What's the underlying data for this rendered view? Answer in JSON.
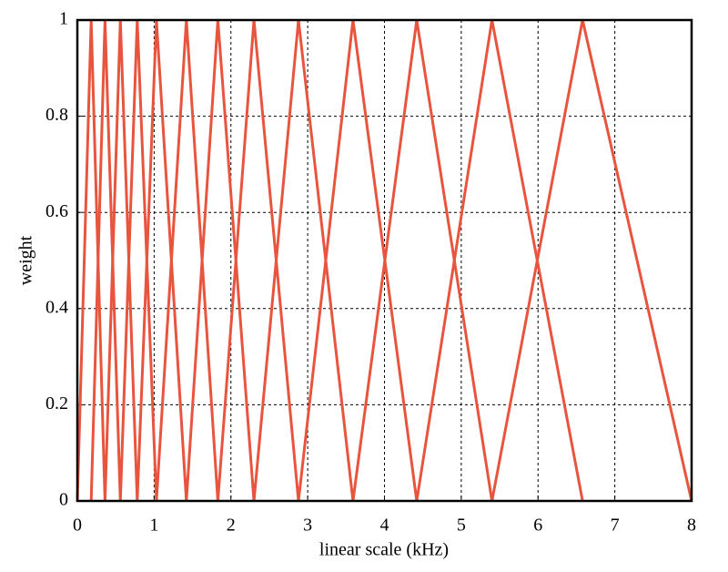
{
  "chart_data": {
    "type": "line",
    "xlabel": "linear scale (kHz)",
    "ylabel": "weight",
    "xlim": [
      0,
      8
    ],
    "ylim": [
      0,
      1
    ],
    "xticks": [
      0,
      1,
      2,
      3,
      4,
      5,
      6,
      7,
      8
    ],
    "yticks": [
      0,
      0.2,
      0.4,
      0.6,
      0.8,
      1
    ],
    "grid": true,
    "series": [
      {
        "color": "#e8553f",
        "x": [
          0,
          0.18,
          0.36,
          0.56,
          0.78,
          1.03,
          1.42,
          1.83,
          2.3,
          2.88,
          3.59,
          4.42,
          5.4,
          6.58,
          8
        ],
        "values": [
          0,
          1,
          0,
          1,
          0,
          1,
          0,
          1,
          0,
          1,
          0,
          1,
          0,
          1,
          0
        ]
      },
      {
        "color": "#e8553f",
        "x": [
          0.18,
          0.36,
          0.56,
          0.78,
          1.03,
          1.42,
          1.83,
          2.3,
          2.88,
          3.59,
          4.42,
          5.4,
          6.58
        ],
        "values": [
          0,
          1,
          0,
          1,
          0,
          1,
          0,
          1,
          0,
          1,
          0,
          1,
          0
        ]
      }
    ]
  }
}
